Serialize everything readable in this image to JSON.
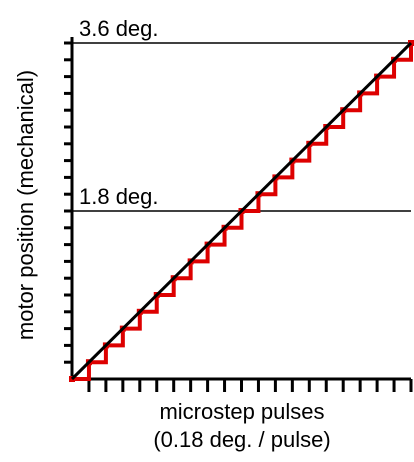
{
  "chart_data": {
    "type": "line",
    "xlabel": "microstep pulses",
    "xlabel_sub": "(0.18 deg. / pulse)",
    "ylabel": "motor position (mechanical)",
    "xlim": [
      0,
      20
    ],
    "ylim": [
      0,
      3.6
    ],
    "reference_lines": [
      {
        "y": 3.6,
        "label": "3.6 deg."
      },
      {
        "y": 1.8,
        "label": "1.8 deg."
      }
    ],
    "series": [
      {
        "style": "staircase",
        "x": [
          0,
          1,
          2,
          3,
          4,
          5,
          6,
          7,
          8,
          9,
          10,
          11,
          12,
          13,
          14,
          15,
          16,
          17,
          18,
          19,
          20
        ],
        "y": [
          0,
          0.18,
          0.36,
          0.54,
          0.72,
          0.9,
          1.08,
          1.26,
          1.44,
          1.62,
          1.8,
          1.98,
          2.16,
          2.34,
          2.52,
          2.7,
          2.88,
          3.06,
          3.24,
          3.42,
          3.6
        ]
      },
      {
        "style": "line",
        "x": [
          0,
          20
        ],
        "y": [
          0,
          3.6
        ]
      }
    ],
    "x_minor_ticks": 20,
    "y_minor_ticks": 20,
    "colors": {
      "staircase": "#dd0000",
      "ideal": "#000000"
    }
  }
}
